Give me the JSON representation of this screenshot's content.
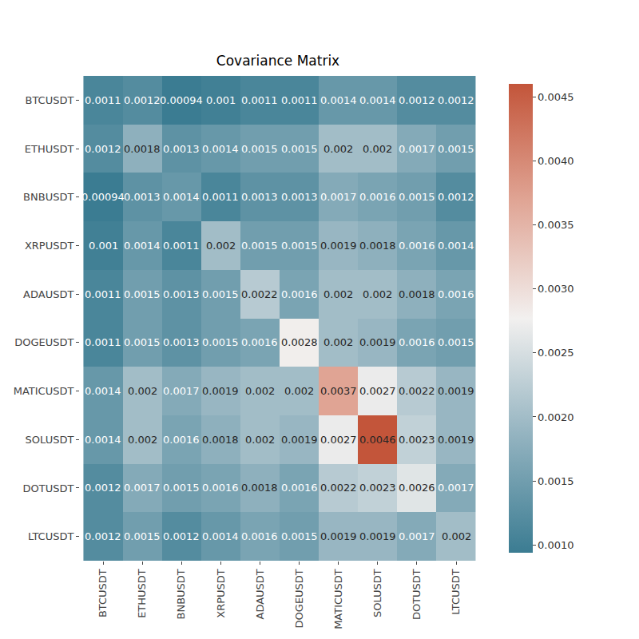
{
  "chart_data": {
    "type": "heatmap",
    "title": "Covariance Matrix",
    "x": [
      "BTCUSDT",
      "ETHUSDT",
      "BNBUSDT",
      "XRPUSDT",
      "ADAUSDT",
      "DOGEUSDT",
      "MATICUSDT",
      "SOLUSDT",
      "DOTUSDT",
      "LTCUSDT"
    ],
    "y": [
      "BTCUSDT",
      "ETHUSDT",
      "BNBUSDT",
      "XRPUSDT",
      "ADAUSDT",
      "DOGEUSDT",
      "MATICUSDT",
      "SOLUSDT",
      "DOTUSDT",
      "LTCUSDT"
    ],
    "values": [
      [
        0.0011,
        0.0012,
        0.00094,
        0.001,
        0.0011,
        0.0011,
        0.0014,
        0.0014,
        0.0012,
        0.0012
      ],
      [
        0.0012,
        0.0018,
        0.0013,
        0.0014,
        0.0015,
        0.0015,
        0.002,
        0.002,
        0.0017,
        0.0015
      ],
      [
        0.00094,
        0.0013,
        0.0014,
        0.0011,
        0.0013,
        0.0013,
        0.0017,
        0.0016,
        0.0015,
        0.0012
      ],
      [
        0.001,
        0.0014,
        0.0011,
        0.002,
        0.0015,
        0.0015,
        0.0019,
        0.0018,
        0.0016,
        0.0014
      ],
      [
        0.0011,
        0.0015,
        0.0013,
        0.0015,
        0.0022,
        0.0016,
        0.002,
        0.002,
        0.0018,
        0.0016
      ],
      [
        0.0011,
        0.0015,
        0.0013,
        0.0015,
        0.0016,
        0.0028,
        0.002,
        0.0019,
        0.0016,
        0.0015
      ],
      [
        0.0014,
        0.002,
        0.0017,
        0.0019,
        0.002,
        0.002,
        0.0037,
        0.0027,
        0.0022,
        0.0019
      ],
      [
        0.0014,
        0.002,
        0.0016,
        0.0018,
        0.002,
        0.0019,
        0.0027,
        0.0046,
        0.0023,
        0.0019
      ],
      [
        0.0012,
        0.0017,
        0.0015,
        0.0016,
        0.0018,
        0.0016,
        0.0022,
        0.0023,
        0.0026,
        0.0017
      ],
      [
        0.0012,
        0.0015,
        0.0012,
        0.0014,
        0.0016,
        0.0015,
        0.0019,
        0.0019,
        0.0017,
        0.002
      ]
    ],
    "data_labels": true,
    "colorbar_range": [
      0.00094,
      0.0046
    ],
    "colorbar_ticks": [
      {
        "value": 0.001,
        "label": "0.0010"
      },
      0.0015,
      {
        "value": 0.002,
        "label": "0.0020"
      },
      0.0025,
      {
        "value": 0.003,
        "label": "0.0030"
      },
      0.0035,
      {
        "value": 0.004,
        "label": "0.0040"
      },
      0.0045
    ]
  }
}
